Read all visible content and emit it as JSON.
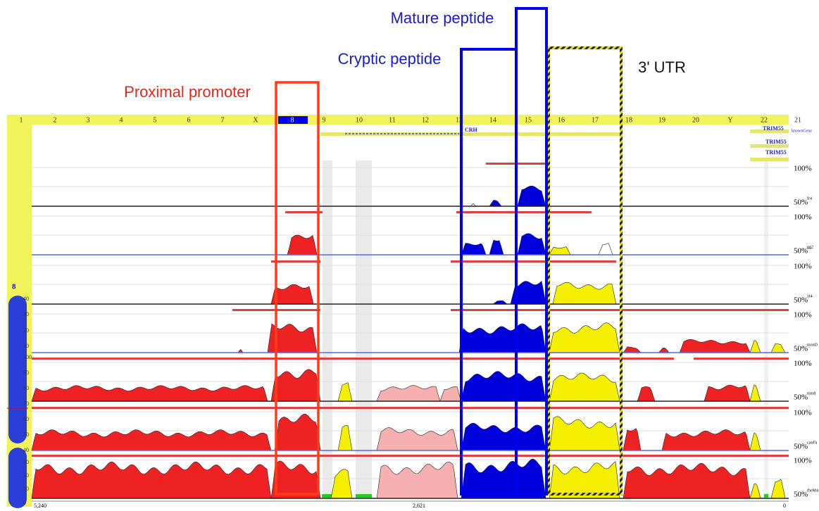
{
  "annotations": {
    "mature": "Mature peptide",
    "cryptic": "Cryptic peptide",
    "utr": "3' UTR",
    "promoter": "Proximal promoter"
  },
  "chromosomes": [
    "1",
    "2",
    "3",
    "4",
    "5",
    "6",
    "7",
    "X",
    "8",
    "9",
    "10",
    "11",
    "12",
    "13",
    "14",
    "15",
    "16",
    "17",
    "18",
    "19",
    "20",
    "Y",
    "22",
    "21"
  ],
  "genes": {
    "crh": "CRH",
    "trim": [
      "TRIM55",
      "TRIM55",
      "TRIM55"
    ],
    "track": "knownGene"
  },
  "tracks": [
    {
      "top": "100%",
      "bottom": "50%",
      "name": "fr4"
    },
    {
      "top": "100%",
      "bottom": "50%",
      "name": "gg2"
    },
    {
      "top": "100%",
      "bottom": "50%",
      "name": "xt4"
    },
    {
      "top": "100%",
      "bottom": "50%",
      "name": "monD"
    },
    {
      "top": "100%",
      "bottom": "50%",
      "name": "mm8"
    },
    {
      "top": "100%",
      "bottom": "50%",
      "name": "canFa"
    },
    {
      "top": "100%",
      "bottom": "50%",
      "name": "rheM4"
    }
  ],
  "left_panel": {
    "chromosome": "8",
    "scale": [
      "40",
      "30",
      "20",
      "10",
      "100",
      "90",
      "80",
      "70",
      "60",
      "50",
      "40",
      "30",
      "20",
      "10",
      "0"
    ]
  },
  "axis": {
    "left": "5,240",
    "middle": "2,621",
    "right": "0"
  }
}
